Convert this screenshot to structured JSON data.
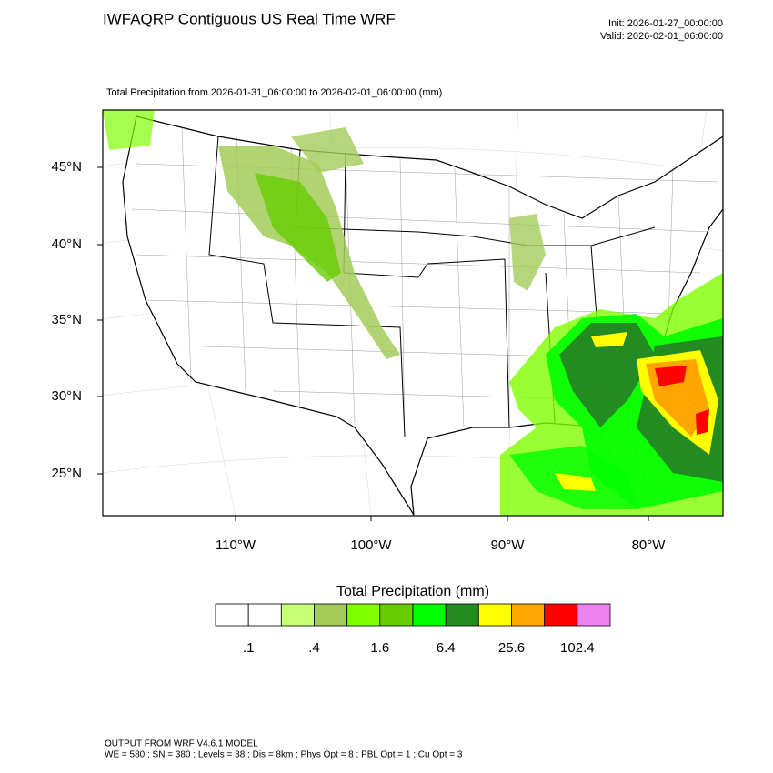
{
  "header": {
    "title": "IWFAQRP Contiguous US Real Time WRF",
    "init": "Init: 2026-01-27_00:00:00",
    "valid": "Valid: 2026-02-01_06:00:00",
    "subtitle": "Total Precipitation from 2026-01-31_06:00:00 to 2026-02-01_06:00:00   (mm)"
  },
  "map": {
    "lat_labels": [
      "45°N",
      "40°N",
      "35°N",
      "30°N",
      "25°N"
    ],
    "lon_labels": [
      "110°W",
      "100°W",
      "90°W",
      "80°W"
    ]
  },
  "colorbar": {
    "title": "Total Precipitation  (mm)",
    "colors": [
      "#ffffff",
      "#ffffff",
      "#c6ff73",
      "#a3cc5a",
      "#7fff00",
      "#66cc00",
      "#00ff00",
      "#228b22",
      "#ffff00",
      "#ffa500",
      "#ff0000",
      "#ee82ee"
    ],
    "labels": [
      ".1",
      ".4",
      "1.6",
      "6.4",
      "25.6",
      "102.4"
    ]
  },
  "footer": {
    "line1": "OUTPUT FROM WRF V4.6.1 MODEL",
    "line2": "WE = 580 ; SN = 380 ; Levels = 38 ; Dis = 8km ; Phys Opt = 8 ; PBL Opt = 1 ; Cu Opt = 3"
  }
}
